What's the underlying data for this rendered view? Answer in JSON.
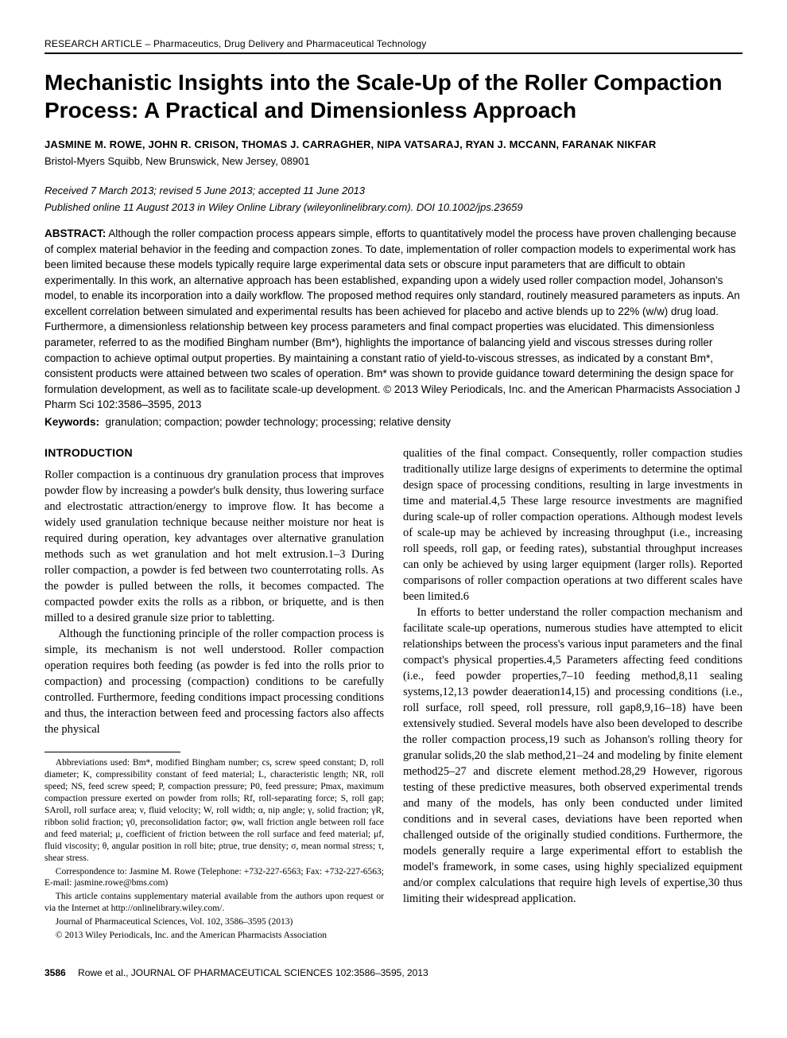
{
  "category": "RESEARCH ARTICLE – Pharmaceutics, Drug Delivery and Pharmaceutical Technology",
  "title": "Mechanistic Insights into the Scale-Up of the Roller Compaction Process: A Practical and Dimensionless Approach",
  "authors": "JASMINE M. ROWE, JOHN R. CRISON, THOMAS J. CARRAGHER, NIPA VATSARAJ, RYAN J. MCCANN, FARANAK NIKFAR",
  "affiliation": "Bristol-Myers Squibb, New Brunswick, New Jersey, 08901",
  "dates": "Received 7 March 2013; revised 5 June 2013; accepted 11 June 2013",
  "published": "Published online 11 August 2013 in Wiley Online Library (wileyonlinelibrary.com). DOI 10.1002/jps.23659",
  "abstract_label": "ABSTRACT:",
  "abstract_text": "Although the roller compaction process appears simple, efforts to quantitatively model the process have proven challenging because of complex material behavior in the feeding and compaction zones. To date, implementation of roller compaction models to experimental work has been limited because these models typically require large experimental data sets or obscure input parameters that are difficult to obtain experimentally. In this work, an alternative approach has been established, expanding upon a widely used roller compaction model, Johanson's model, to enable its incorporation into a daily workflow. The proposed method requires only standard, routinely measured parameters as inputs. An excellent correlation between simulated and experimental results has been achieved for placebo and active blends up to 22% (w/w) drug load. Furthermore, a dimensionless relationship between key process parameters and final compact properties was elucidated. This dimensionless parameter, referred to as the modified Bingham number (Bm*), highlights the importance of balancing yield and viscous stresses during roller compaction to achieve optimal output properties. By maintaining a constant ratio of yield-to-viscous stresses, as indicated by a constant Bm*, consistent products were attained between two scales of operation. Bm* was shown to provide guidance toward determining the design space for formulation development, as well as to facilitate scale-up development. © 2013 Wiley Periodicals, Inc. and the American Pharmacists Association J Pharm Sci 102:3586–3595, 2013",
  "keywords_label": "Keywords:",
  "keywords_text": "granulation; compaction; powder technology; processing; relative density",
  "section_heading": "INTRODUCTION",
  "body": {
    "p1": "Roller compaction is a continuous dry granulation process that improves powder flow by increasing a powder's bulk density, thus lowering surface and electrostatic attraction/energy to improve flow. It has become a widely used granulation technique because neither moisture nor heat is required during operation, key advantages over alternative granulation methods such as wet granulation and hot melt extrusion.1–3 During roller compaction, a powder is fed between two counterrotating rolls. As the powder is pulled between the rolls, it becomes compacted. The compacted powder exits the rolls as a ribbon, or briquette, and is then milled to a desired granule size prior to tabletting.",
    "p2": "Although the functioning principle of the roller compaction process is simple, its mechanism is not well understood. Roller compaction operation requires both feeding (as powder is fed into the rolls prior to compaction) and processing (compaction) conditions to be carefully controlled. Furthermore, feeding conditions impact processing conditions and thus, the interaction between feed and processing factors also affects the physical",
    "p3": "qualities of the final compact. Consequently, roller compaction studies traditionally utilize large designs of experiments to determine the optimal design space of processing conditions, resulting in large investments in time and material.4,5 These large resource investments are magnified during scale-up of roller compaction operations. Although modest levels of scale-up may be achieved by increasing throughput (i.e., increasing roll speeds, roll gap, or feeding rates), substantial throughput increases can only be achieved by using larger equipment (larger rolls). Reported comparisons of roller compaction operations at two different scales have been limited.6",
    "p4": "In efforts to better understand the roller compaction mechanism and facilitate scale-up operations, numerous studies have attempted to elicit relationships between the process's various input parameters and the final compact's physical properties.4,5 Parameters affecting feed conditions (i.e., feed powder properties,7–10 feeding method,8,11 sealing systems,12,13 powder deaeration14,15) and processing conditions (i.e., roll surface, roll speed, roll pressure, roll gap8,9,16–18) have been extensively studied. Several models have also been developed to describe the roller compaction process,19 such as Johanson's rolling theory for granular solids,20 the slab method,21–24 and modeling by finite element method25–27 and discrete element method.28,29 However, rigorous testing of these predictive measures, both observed experimental trends and many of the models, has only been conducted under limited conditions and in several cases, deviations have been reported when challenged outside of the originally studied conditions. Furthermore, the models generally require a large experimental effort to establish the model's framework, in some cases, using highly specialized equipment and/or complex calculations that require high levels of expertise,30 thus limiting their widespread application."
  },
  "footnotes": {
    "abbr": "Abbreviations used: Bm*, modified Bingham number; cs, screw speed constant; D, roll diameter; K, compressibility constant of feed material; L, characteristic length; NR, roll speed; NS, feed screw speed; P, compaction pressure; P0, feed pressure; Pmax, maximum compaction pressure exerted on powder from rolls; Rf, roll-separating force; S, roll gap; SAroll, roll surface area; v, fluid velocity; W, roll width; α, nip angle; γ, solid fraction; γR, ribbon solid fraction; γ0, preconsolidation factor; φw, wall friction angle between roll face and feed material; μ, coefficient of friction between the roll surface and feed material; μf, fluid viscosity; θ, angular position in roll bite; ρtrue, true density; σ, mean normal stress; τ, shear stress.",
    "corr": "Correspondence to: Jasmine M. Rowe (Telephone: +732-227-6563; Fax: +732-227-6563; E-mail: jasmine.rowe@bms.com)",
    "supp": "This article contains supplementary material available from the authors upon request or via the Internet at http://onlinelibrary.wiley.com/.",
    "journal": "Journal of Pharmaceutical Sciences, Vol. 102, 3586–3595 (2013)",
    "copy": "© 2013 Wiley Periodicals, Inc. and the American Pharmacists Association"
  },
  "pagefoot": {
    "number": "3586",
    "cite": "Rowe et al., JOURNAL OF PHARMACEUTICAL SCIENCES 102:3586–3595, 2013"
  }
}
